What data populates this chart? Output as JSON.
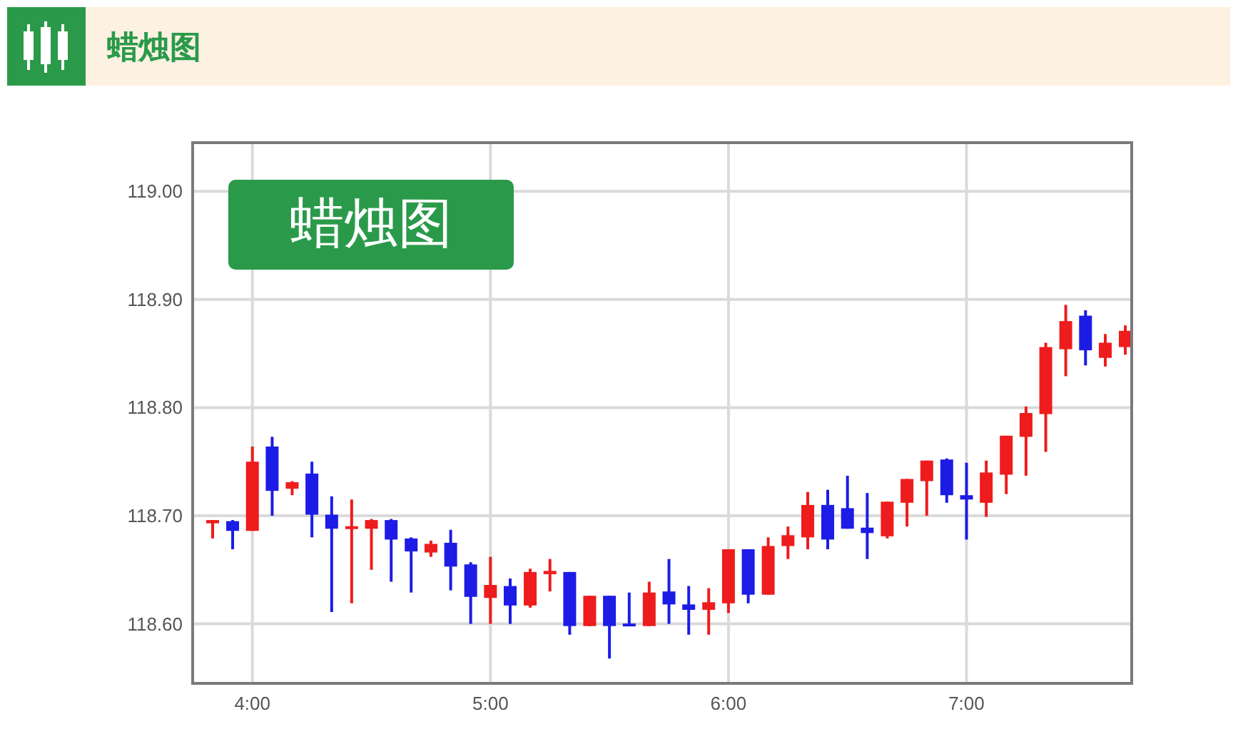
{
  "chart_data": {
    "type": "candlestick",
    "title": "蜡烛图",
    "annotations": [
      "蜡烛图"
    ],
    "x": [
      3.833,
      3.917,
      4,
      4.083,
      4.167,
      4.25,
      4.333,
      4.417,
      4.5,
      4.583,
      4.667,
      4.75,
      4.833,
      4.917,
      5,
      5.083,
      5.167,
      5.25,
      5.333,
      5.417,
      5.5,
      5.583,
      5.667,
      5.75,
      5.833,
      5.917,
      6,
      6.083,
      6.167,
      6.25,
      6.333,
      6.417,
      6.5,
      6.583,
      6.667,
      6.75,
      6.833,
      6.917,
      7,
      7.083,
      7.167,
      7.25,
      7.333,
      7.417,
      7.5,
      7.583,
      7.667
    ],
    "ohlc": [
      [
        118.693,
        118.696,
        118.679,
        118.696
      ],
      [
        118.695,
        118.696,
        118.669,
        118.686
      ],
      [
        118.686,
        118.764,
        118.686,
        118.75
      ],
      [
        118.764,
        118.773,
        118.7,
        118.723
      ],
      [
        118.725,
        118.732,
        118.719,
        118.731
      ],
      [
        118.739,
        118.75,
        118.68,
        118.701
      ],
      [
        118.701,
        118.718,
        118.611,
        118.688
      ],
      [
        118.688,
        118.715,
        118.619,
        118.69
      ],
      [
        118.688,
        118.697,
        118.65,
        118.696
      ],
      [
        118.696,
        118.697,
        118.639,
        118.678
      ],
      [
        118.679,
        118.68,
        118.629,
        118.667
      ],
      [
        118.666,
        118.677,
        118.662,
        118.674
      ],
      [
        118.675,
        118.687,
        118.631,
        118.653
      ],
      [
        118.655,
        118.657,
        118.6,
        118.625
      ],
      [
        118.624,
        118.662,
        118.6,
        118.636
      ],
      [
        118.635,
        118.642,
        118.6,
        118.617
      ],
      [
        118.617,
        118.651,
        118.615,
        118.648
      ],
      [
        118.646,
        118.66,
        118.63,
        118.649
      ],
      [
        118.648,
        118.648,
        118.59,
        118.598
      ],
      [
        118.598,
        118.626,
        118.598,
        118.626
      ],
      [
        118.626,
        118.626,
        118.568,
        118.598
      ],
      [
        118.6,
        118.629,
        118.598,
        118.598
      ],
      [
        118.598,
        118.639,
        118.598,
        118.629
      ],
      [
        118.63,
        118.66,
        118.6,
        118.618
      ],
      [
        118.618,
        118.635,
        118.59,
        118.613
      ],
      [
        118.613,
        118.633,
        118.59,
        118.62
      ],
      [
        118.619,
        118.669,
        118.61,
        118.669
      ],
      [
        118.669,
        118.669,
        118.619,
        118.627
      ],
      [
        118.627,
        118.68,
        118.627,
        118.672
      ],
      [
        118.672,
        118.69,
        118.66,
        118.682
      ],
      [
        118.68,
        118.722,
        118.669,
        118.71
      ],
      [
        118.71,
        118.724,
        118.669,
        118.678
      ],
      [
        118.707,
        118.737,
        118.688,
        118.688
      ],
      [
        118.689,
        118.721,
        118.66,
        118.684
      ],
      [
        118.681,
        118.713,
        118.679,
        118.713
      ],
      [
        118.712,
        118.734,
        118.69,
        118.734
      ],
      [
        118.732,
        118.751,
        118.7,
        118.751
      ],
      [
        118.752,
        118.753,
        118.712,
        118.719
      ],
      [
        118.719,
        118.749,
        118.678,
        118.715
      ],
      [
        118.712,
        118.751,
        118.699,
        118.74
      ],
      [
        118.738,
        118.774,
        118.72,
        118.774
      ],
      [
        118.773,
        118.801,
        118.737,
        118.795
      ],
      [
        118.794,
        118.86,
        118.759,
        118.856
      ],
      [
        118.854,
        118.895,
        118.829,
        118.88
      ],
      [
        118.885,
        118.89,
        118.839,
        118.853
      ],
      [
        118.846,
        118.868,
        118.838,
        118.86
      ],
      [
        118.856,
        118.876,
        118.849,
        118.871
      ]
    ],
    "colors": [
      "#ee1c1c",
      "#1c1ce6",
      "#ee1c1c",
      "#1c1ce6",
      "#ee1c1c",
      "#1c1ce6",
      "#1c1ce6",
      "#ee1c1c",
      "#ee1c1c",
      "#1c1ce6",
      "#1c1ce6",
      "#ee1c1c",
      "#1c1ce6",
      "#1c1ce6",
      "#ee1c1c",
      "#1c1ce6",
      "#ee1c1c",
      "#ee1c1c",
      "#1c1ce6",
      "#ee1c1c",
      "#1c1ce6",
      "#1c1ce6",
      "#ee1c1c",
      "#1c1ce6",
      "#1c1ce6",
      "#ee1c1c",
      "#ee1c1c",
      "#1c1ce6",
      "#ee1c1c",
      "#ee1c1c",
      "#ee1c1c",
      "#1c1ce6",
      "#1c1ce6",
      "#1c1ce6",
      "#ee1c1c",
      "#ee1c1c",
      "#ee1c1c",
      "#1c1ce6",
      "#1c1ce6",
      "#ee1c1c",
      "#ee1c1c",
      "#ee1c1c",
      "#ee1c1c",
      "#ee1c1c",
      "#1c1ce6",
      "#ee1c1c",
      "#ee1c1c"
    ],
    "xlim": [
      3.749,
      7.694
    ],
    "xticks": [
      {
        "value": 4,
        "label": "4:00"
      },
      {
        "value": 5,
        "label": "5:00"
      },
      {
        "value": 6,
        "label": "6:00"
      },
      {
        "value": 7,
        "label": "7:00"
      }
    ],
    "ylim": [
      118.545,
      119.045
    ],
    "yticks": [
      {
        "value": 118.6,
        "label": "118.60"
      },
      {
        "value": 118.7,
        "label": "118.70"
      },
      {
        "value": 118.8,
        "label": "118.80"
      },
      {
        "value": 118.9,
        "label": "118.90"
      },
      {
        "value": 119,
        "label": "119.00"
      }
    ],
    "grid": true
  }
}
